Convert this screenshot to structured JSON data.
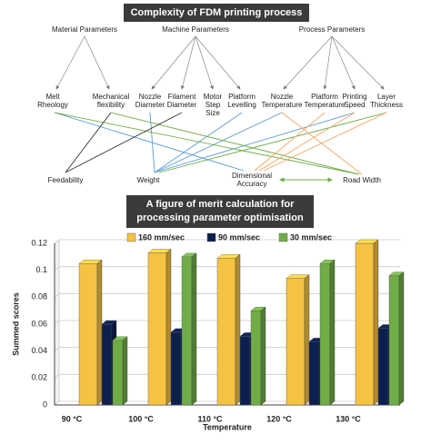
{
  "diagram": {
    "title": "Complexity of FDM printing process",
    "groups": [
      "Material Parameters",
      "Machine Parameters",
      "Process Parameters"
    ],
    "parameters": [
      "Melt Rheology",
      "Mechanical flexibility",
      "Nozzle Diameter",
      "Filament Diameter",
      "Motor Step Size",
      "Platform Levelling",
      "Nozzle Temperature",
      "Platform Temperature",
      "Printing Speed",
      "Layer Thickness"
    ],
    "outcomes": [
      "Feedability",
      "Weight",
      "Dimensional Accuracy",
      "Road Width"
    ]
  },
  "chart_data": {
    "type": "bar3d",
    "title": "A figure of merit calculation for processing parameter optimisation",
    "x_label": "Temperature",
    "y_label": "Summed scores",
    "categories": [
      "90 °C",
      "100 °C",
      "110 °C",
      "120 °C",
      "130 °C"
    ],
    "series": [
      {
        "name": "160 mm/sec",
        "color": "#f5c242",
        "values": [
          0.105,
          0.113,
          0.109,
          0.094,
          0.12
        ]
      },
      {
        "name": "90 mm/sec",
        "color": "#0d1f4f",
        "values": [
          0.06,
          0.054,
          0.051,
          0.047,
          0.057
        ]
      },
      {
        "name": "30 mm/sec",
        "color": "#70ad47",
        "values": [
          0.048,
          0.11,
          0.07,
          0.105,
          0.096
        ]
      }
    ],
    "ylim": [
      0,
      0.12
    ],
    "yticks": [
      0,
      0.02,
      0.04,
      0.06,
      0.08,
      0.1,
      0.12
    ],
    "grid": true,
    "legend": "top"
  }
}
